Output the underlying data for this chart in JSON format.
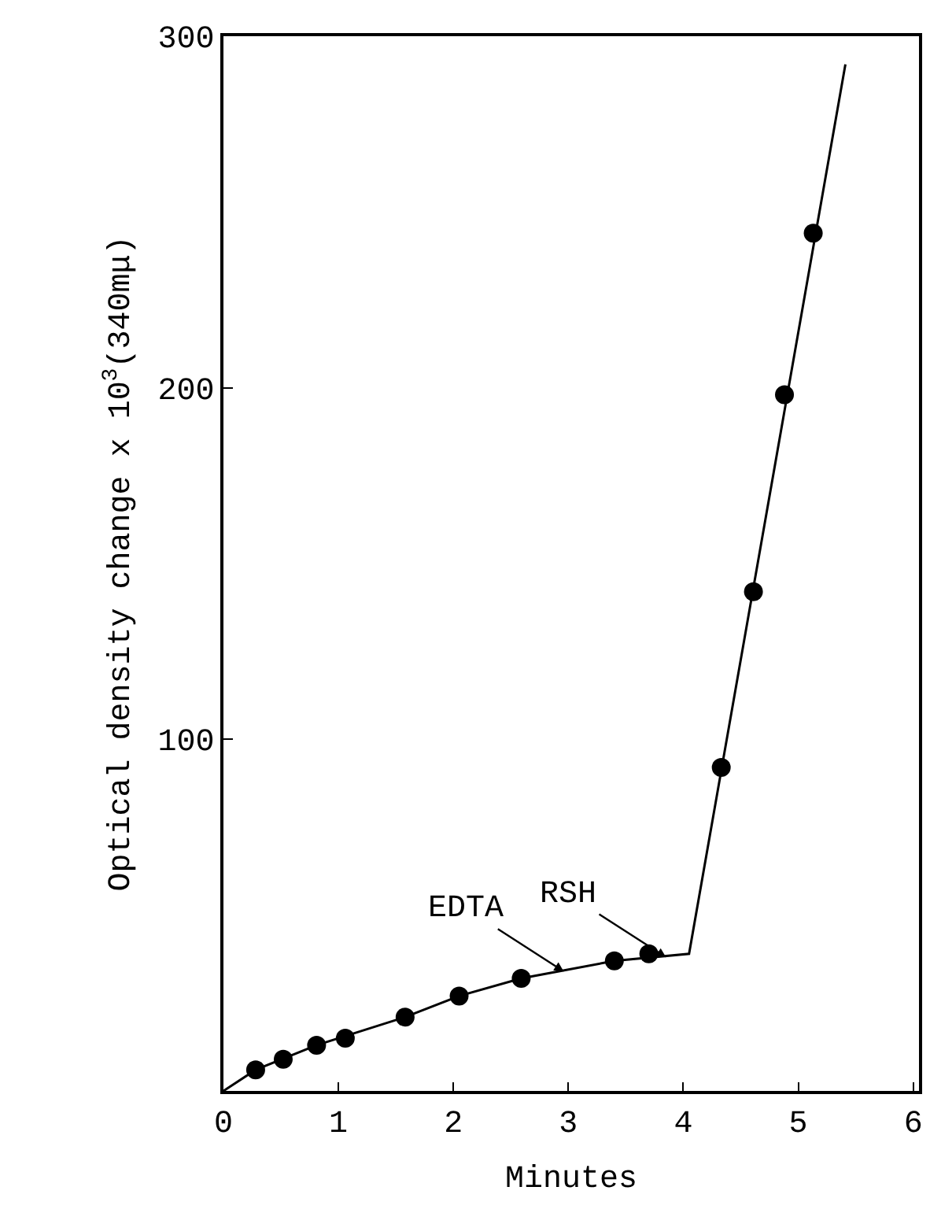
{
  "chart_data": {
    "type": "scatter",
    "xlabel": "Minutes",
    "ylabel": "Optical density change x 10$^{3}$(340mμ)",
    "xlim": [
      0,
      6.05
    ],
    "ylim": [
      0,
      300
    ],
    "xticks": [
      0,
      1,
      2,
      3,
      4,
      5,
      6
    ],
    "yticks": [
      {
        "value": 0,
        "label": null
      },
      100,
      200,
      300
    ],
    "series": [
      {
        "marker": "circle",
        "color": "#000000",
        "x": [
          0.28,
          0.52,
          0.81,
          1.06,
          1.58,
          2.05,
          2.59,
          3.4,
          3.7,
          4.33,
          4.61,
          4.88,
          5.13
        ],
        "values": [
          6,
          9,
          13,
          15,
          21,
          27,
          32,
          37,
          39,
          92,
          142,
          198,
          244
        ]
      },
      {
        "type": "line",
        "marker": "none",
        "line_style": "solid",
        "color": "#000000",
        "x": [
          0,
          0.28,
          0.81,
          1.58,
          2.05,
          2.59,
          3.4,
          4.05,
          5.41
        ],
        "values": [
          0,
          6,
          13,
          21,
          27,
          32,
          37,
          39,
          292
        ]
      }
    ],
    "annotations": [
      {
        "text": "EDTA",
        "x": 2.96,
        "y": 34
      },
      {
        "text": "RSH",
        "x": 3.85,
        "y": 38
      }
    ]
  }
}
